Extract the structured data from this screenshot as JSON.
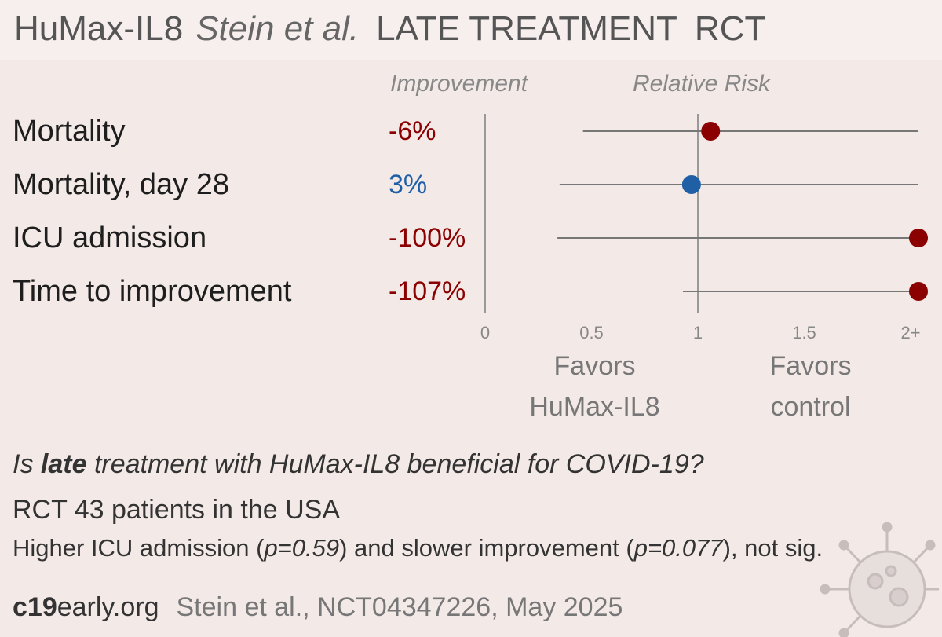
{
  "header": {
    "drug": "HuMax-IL8",
    "authors": "Stein et al.",
    "stage": "LATE TREATMENT",
    "design": "RCT"
  },
  "columns": {
    "improvement": "Improvement",
    "relative_risk": "Relative Risk"
  },
  "favors": {
    "left": [
      "Favors",
      "HuMax-IL8"
    ],
    "right": [
      "Favors",
      "control"
    ]
  },
  "colors": {
    "harm": "#8b0000",
    "benefit": "#1f5fa5",
    "line": "#777777",
    "axis": "#999999"
  },
  "chart_data": {
    "type": "forest",
    "xlim": [
      0,
      2
    ],
    "ticks": [
      {
        "value": 0,
        "label": "0"
      },
      {
        "value": 0.5,
        "label": "0.5"
      },
      {
        "value": 1,
        "label": "1"
      },
      {
        "value": 1.5,
        "label": "1.5"
      },
      {
        "value": 2,
        "label": "2+"
      }
    ],
    "reference_line": 1,
    "outcomes": [
      {
        "label": "Mortality",
        "improvement": "-6%",
        "rr": 1.06,
        "ci": [
          0.46,
          2.0
        ],
        "direction": "harm"
      },
      {
        "label": "Mortality, day 28",
        "improvement": "3%",
        "rr": 0.97,
        "ci": [
          0.35,
          2.0
        ],
        "direction": "benefit"
      },
      {
        "label": "ICU admission",
        "improvement": "-100%",
        "rr": 2.0,
        "ci": [
          0.34,
          2.0
        ],
        "direction": "harm"
      },
      {
        "label": "Time to improvement",
        "improvement": "-107%",
        "rr": 2.0,
        "ci": [
          0.93,
          2.0
        ],
        "direction": "harm"
      }
    ]
  },
  "summary": {
    "question_pre": "Is ",
    "question_bold": "late",
    "question_post": " treatment with HuMax-IL8 beneficial for COVID-19?",
    "design_line": "RCT 43 patients in the USA",
    "result_a": "Higher ICU admission (",
    "result_p1": "p=0.59",
    "result_b": ") and slower improvement (",
    "result_p2": "p=0.077",
    "result_c": "), not sig."
  },
  "footer": {
    "site_bold": "c19",
    "site_rest": "early.org",
    "citation": "Stein et al., NCT04347226, May 2025"
  }
}
